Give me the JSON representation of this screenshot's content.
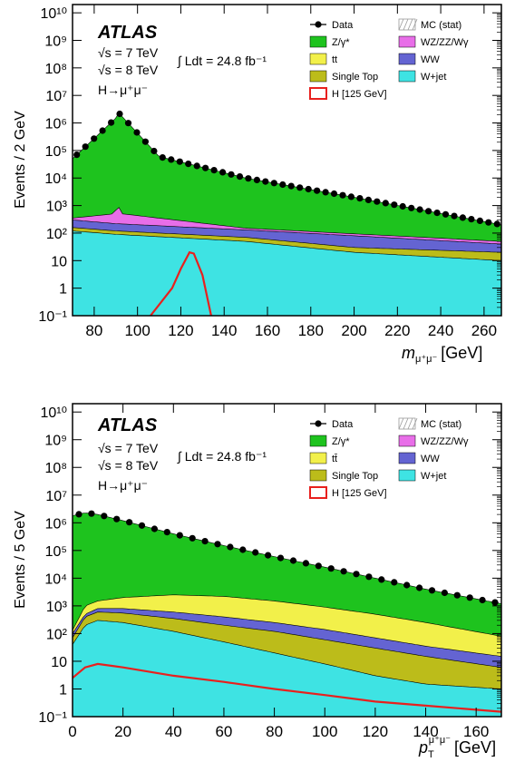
{
  "colors": {
    "zgamma": "#1ec31e",
    "ttbar": "#f2f04a",
    "single_top": "#bcbc1a",
    "ww": "#6464d2",
    "wzzz": "#e86ee8",
    "wjet": "#3ee3e3",
    "higgs": "#e8201e",
    "data": "#000000",
    "mc_stat": "#9a9a9a"
  },
  "chart_data": [
    {
      "type": "area",
      "experiment": "ATLAS",
      "energy_line1": "√s = 7 TeV",
      "energy_line2": "√s = 8 TeV",
      "lumi": "∫ Ldt = 24.8 fb⁻¹",
      "channel": "H→μ⁺μ⁻",
      "ylabel": "Events / 2 GeV",
      "xlabel": "m",
      "xlabel_sub": "μ⁺μ⁻",
      "xlabel_unit": "[GeV]",
      "xlim": [
        70,
        268
      ],
      "ylim": [
        0.1,
        20000000000
      ],
      "log_y": true,
      "x_ticks": [
        "80",
        "100",
        "120",
        "140",
        "160",
        "180",
        "200",
        "220",
        "240",
        "260"
      ],
      "y_ticks": [
        "10⁻¹",
        "1",
        "10",
        "10²",
        "10³",
        "10⁴",
        "10⁵",
        "10⁶",
        "10⁷",
        "10⁸",
        "10⁹",
        "10¹⁰"
      ],
      "legend": {
        "placement": "top-right",
        "entries": [
          {
            "label": "Data",
            "kind": "data"
          },
          {
            "label": "MC (stat)",
            "kind": "hatch"
          },
          {
            "label": "Z/γ*",
            "kind": "zgamma"
          },
          {
            "label": "WZ/ZZ/Wγ",
            "kind": "wzzz"
          },
          {
            "label": "tt",
            "kind": "ttbar"
          },
          {
            "label": "WW",
            "kind": "ww"
          },
          {
            "label": "Single Top",
            "kind": "single_top"
          },
          {
            "label": "W+jet",
            "kind": "wjet"
          },
          {
            "label": "H [125 GeV]",
            "kind": "higgs"
          }
        ]
      },
      "series": {
        "data_x": [
          70,
          90,
          91,
          110,
          150,
          200,
          268
        ],
        "data_y": [
          50000,
          1500000,
          2500000,
          60000,
          10000,
          2000,
          200
        ],
        "total_x": [
          70,
          90,
          91,
          110,
          150,
          200,
          268
        ],
        "total_y": [
          50000,
          1500000,
          2500000,
          60000,
          10000,
          2000,
          200
        ],
        "wjet_x": [
          70,
          90,
          150,
          200,
          268
        ],
        "wjet_y": [
          120,
          90,
          50,
          20,
          10
        ],
        "wjet_plus_top_x": [
          70,
          90,
          150,
          200,
          268
        ],
        "wjet_plus_top_y": [
          160,
          120,
          70,
          30,
          20
        ],
        "ww_top_x": [
          70,
          90,
          150,
          200,
          268
        ],
        "ww_top_y": [
          300,
          220,
          130,
          80,
          40
        ],
        "wzzz_top_x": [
          70,
          89,
          91,
          93,
          150,
          268
        ],
        "wzzz_top_y": [
          350,
          500,
          1000,
          500,
          150,
          50
        ],
        "higgs_x": [
          106,
          116,
          120,
          124,
          126,
          130,
          134
        ],
        "higgs_y": [
          0.1,
          1,
          5,
          20,
          18,
          3,
          0.1
        ]
      }
    },
    {
      "type": "area",
      "experiment": "ATLAS",
      "energy_line1": "√s = 7 TeV",
      "energy_line2": "√s = 8 TeV",
      "lumi": "∫ Ldt = 24.8 fb⁻¹",
      "channel": "H→μ⁺μ⁻",
      "ylabel": "Events / 5 GeV",
      "xlabel": "p",
      "xlabel_sub": "T",
      "xlabel_sup": "μ⁺μ⁻",
      "xlabel_unit": "[GeV]",
      "xlim": [
        0,
        170
      ],
      "ylim": [
        0.1,
        20000000000
      ],
      "log_y": true,
      "x_ticks": [
        "0",
        "20",
        "40",
        "60",
        "80",
        "100",
        "120",
        "140",
        "160"
      ],
      "y_ticks": [
        "10⁻¹",
        "1",
        "10",
        "10²",
        "10³",
        "10⁴",
        "10⁵",
        "10⁶",
        "10⁷",
        "10⁸",
        "10⁹",
        "10¹⁰"
      ],
      "legend": {
        "placement": "top-right",
        "entries": [
          {
            "label": "Data",
            "kind": "data"
          },
          {
            "label": "MC (stat)",
            "kind": "hatch"
          },
          {
            "label": "Z/γ*",
            "kind": "zgamma"
          },
          {
            "label": "WZ/ZZ/Wγ",
            "kind": "wzzz"
          },
          {
            "label": "tt̄",
            "kind": "ttbar"
          },
          {
            "label": "WW",
            "kind": "ww"
          },
          {
            "label": "Single Top",
            "kind": "single_top"
          },
          {
            "label": "W+jet",
            "kind": "wjet"
          },
          {
            "label": "H [125 GeV]",
            "kind": "higgs"
          }
        ]
      },
      "series": {
        "data_x": [
          2.5,
          7.5,
          12.5,
          20,
          40,
          60,
          80,
          100,
          120,
          140,
          167.5
        ],
        "data_y": [
          2000000,
          2500000,
          2000000,
          1200000,
          400000,
          150000,
          60000,
          25000,
          10000,
          4000,
          1200
        ],
        "total_x": [
          0,
          5,
          10,
          20,
          40,
          60,
          80,
          100,
          120,
          140,
          170
        ],
        "total_y": [
          1800000,
          2300000,
          2000000,
          1200000,
          400000,
          150000,
          60000,
          25000,
          10000,
          4000,
          1200
        ],
        "wjet_x": [
          0,
          5,
          10,
          20,
          40,
          60,
          80,
          100,
          120,
          140,
          170
        ],
        "wjet_y": [
          40,
          200,
          300,
          250,
          120,
          50,
          20,
          8,
          3,
          1.5,
          1
        ],
        "top_x": [
          0,
          5,
          10,
          20,
          40,
          60,
          80,
          100,
          120,
          140,
          170
        ],
        "top_y": [
          70,
          400,
          600,
          550,
          350,
          200,
          120,
          60,
          30,
          15,
          6
        ],
        "ww_top_x": [
          0,
          5,
          10,
          20,
          40,
          60,
          80,
          100,
          120,
          140,
          170
        ],
        "ww_top_y": [
          100,
          500,
          800,
          800,
          600,
          400,
          250,
          140,
          70,
          35,
          15
        ],
        "ttbar_top_x": [
          0,
          5,
          10,
          20,
          40,
          60,
          80,
          100,
          120,
          140,
          170
        ],
        "ttbar_top_y": [
          130,
          1000,
          1500,
          2000,
          2500,
          2200,
          1500,
          900,
          500,
          250,
          80
        ],
        "higgs_x": [
          0,
          5,
          10,
          20,
          40,
          60,
          80,
          100,
          120,
          140,
          170
        ],
        "higgs_y": [
          2.5,
          6,
          8,
          6,
          3,
          1.8,
          1,
          0.6,
          0.35,
          0.25,
          0.15
        ]
      }
    }
  ]
}
